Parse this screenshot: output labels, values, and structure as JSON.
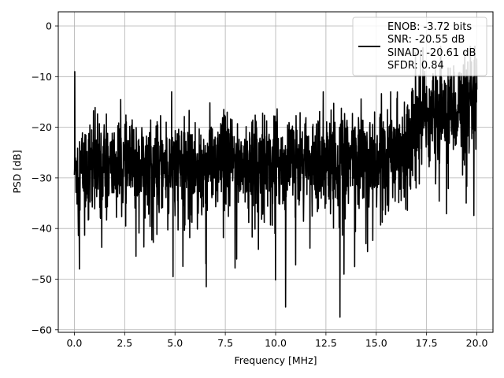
{
  "chart_data": {
    "type": "line",
    "xlabel": "Frequency [MHz]",
    "ylabel": "PSD [dB]",
    "xlim": [
      -0.8,
      20.8
    ],
    "ylim": [
      -60.5,
      2.8
    ],
    "xticks": [
      0.0,
      2.5,
      5.0,
      7.5,
      10.0,
      12.5,
      15.0,
      17.5,
      20.0
    ],
    "xtick_labels": [
      "0.0",
      "2.5",
      "5.0",
      "7.5",
      "10.0",
      "12.5",
      "15.0",
      "17.5",
      "20.0"
    ],
    "yticks": [
      0,
      -10,
      -20,
      -30,
      -40,
      -50,
      -60
    ],
    "ytick_labels": [
      "0",
      "−10",
      "−20",
      "−30",
      "−40",
      "−50",
      "−60"
    ],
    "grid": true,
    "legend_position": "top-right",
    "series": [
      {
        "color": "#000000",
        "x_start": 0.0,
        "x_end": 20.0,
        "points": 2000,
        "noise_floor": {
          "base_x": [
            0.0,
            2.5,
            5.0,
            7.5,
            10.0,
            12.5,
            15.0,
            16.0,
            16.5,
            17.0,
            18.0,
            19.0,
            20.0
          ],
          "base_y": [
            -28,
            -28,
            -27.5,
            -27,
            -27,
            -26.5,
            -26,
            -25,
            -22,
            -18,
            -17,
            -16,
            -16
          ]
        },
        "peaks": [
          {
            "x": 0.02,
            "y": -9
          },
          {
            "x": 17.2,
            "y": -5
          },
          {
            "x": 18.2,
            "y": -4
          },
          {
            "x": 19.4,
            "y": -5
          },
          {
            "x": 19.9,
            "y": -4
          }
        ],
        "dips": [
          {
            "x": 0.25,
            "y": -48
          },
          {
            "x": 4.9,
            "y": -49.5
          },
          {
            "x": 6.55,
            "y": -51.5
          },
          {
            "x": 10.5,
            "y": -55.5
          },
          {
            "x": 13.2,
            "y": -57.5
          },
          {
            "x": 13.4,
            "y": -49
          }
        ]
      }
    ],
    "legend_text": [
      "ENOB: -3.72 bits",
      "SNR: -20.55 dB",
      "SINAD: -20.61 dB",
      "SFDR: 0.84"
    ]
  }
}
